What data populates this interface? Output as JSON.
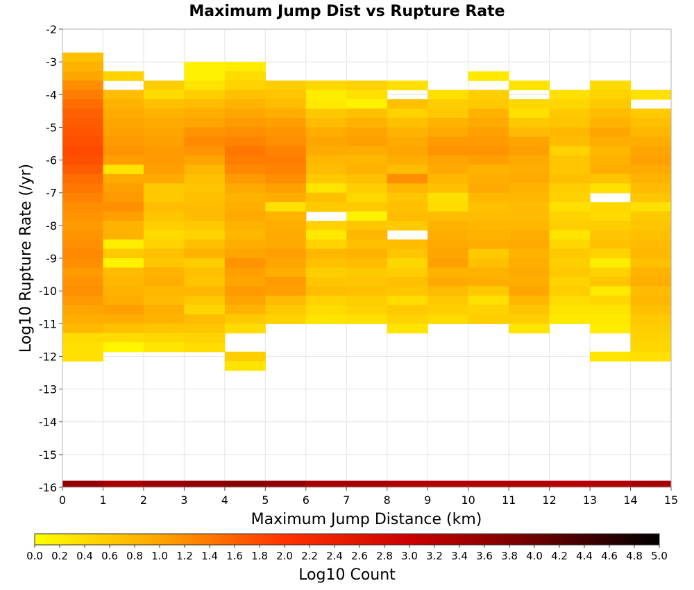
{
  "chart_data": {
    "type": "heatmap",
    "title": "Maximum Jump Dist vs Rupture Rate",
    "xlabel": "Maximum Jump Distance (km)",
    "ylabel": "Log10 Rupture Rate (/yr)",
    "xlim": [
      0,
      15
    ],
    "ylim": [
      -16,
      -2
    ],
    "x_ticks": [
      "0",
      "1",
      "2",
      "3",
      "4",
      "5",
      "6",
      "7",
      "8",
      "9",
      "10",
      "11",
      "12",
      "13",
      "14",
      "15"
    ],
    "y_ticks": [
      "-2",
      "-3",
      "-4",
      "-5",
      "-6",
      "-7",
      "-8",
      "-9",
      "-10",
      "-11",
      "-12",
      "-13",
      "-14",
      "-15",
      "-16"
    ],
    "x_bin_width": 1,
    "y_bin_height": 0.2857,
    "grid": true,
    "colorbar": {
      "label": "Log10 Count",
      "range": [
        0,
        5
      ],
      "colors": [
        "#ffff00",
        "#ffa500",
        "#ff3300",
        "#cc0000",
        "#6e0000",
        "#000000"
      ],
      "ticks": [
        "0.0",
        "0.2",
        "0.4",
        "0.6",
        "0.8",
        "1.0",
        "1.2",
        "1.4",
        "1.6",
        "1.8",
        "2.0",
        "2.2",
        "2.4",
        "2.6",
        "2.8",
        "3.0",
        "3.2",
        "3.4",
        "3.6",
        "3.8",
        "4.0",
        "4.2",
        "4.4",
        "4.6",
        "4.8",
        "5.0"
      ]
    },
    "total_row": {
      "y_range": [
        -16,
        -15.8
      ],
      "values": [
        3.6,
        3.4,
        3.5,
        3.6,
        3.7,
        3.6,
        3.4,
        3.4,
        3.3,
        3.3,
        3.3,
        3.3,
        3.2,
        3.3,
        3.4
      ]
    },
    "columns": [
      {
        "x": 0,
        "y_top": -2.714,
        "values": [
          0.7,
          0.85,
          1.0,
          1.2,
          1.35,
          1.5,
          1.6,
          1.65,
          1.7,
          1.75,
          1.8,
          1.75,
          1.65,
          1.5,
          1.4,
          1.3,
          1.2,
          1.15,
          1.1,
          1.15,
          1.2,
          1.25,
          1.2,
          1.1,
          1.15,
          1.2,
          1.1,
          1.0,
          0.9,
          0.8,
          0.4,
          0.35,
          0.35
        ]
      },
      {
        "x": 1,
        "y_top": -3.286,
        "values": [
          0.5,
          null,
          0.75,
          0.85,
          0.95,
          1.0,
          1.05,
          1.1,
          1.15,
          1.05,
          0.3,
          0.95,
          1.05,
          1.1,
          1.2,
          1.05,
          0.85,
          0.85,
          0.2,
          0.6,
          0.15,
          0.75,
          0.8,
          0.85,
          0.9,
          1.05,
          0.9,
          0.7,
          0.4,
          0.1
        ]
      },
      {
        "x": 2,
        "y_top": -3.571,
        "values": [
          0.55,
          0.4,
          0.7,
          0.85,
          0.95,
          1.0,
          1.05,
          1.1,
          1.1,
          1.05,
          0.95,
          0.6,
          0.6,
          0.75,
          0.65,
          0.55,
          0.4,
          0.5,
          0.7,
          0.65,
          0.85,
          0.9,
          0.8,
          0.75,
          0.9,
          0.85,
          0.65,
          0.45,
          0.3
        ]
      },
      {
        "x": 3,
        "y_top": -3.0,
        "values": [
          0.15,
          0.15,
          0.3,
          0.55,
          0.75,
          0.9,
          1.0,
          1.15,
          1.25,
          1.15,
          1.0,
          0.8,
          0.7,
          0.65,
          0.7,
          0.75,
          0.75,
          0.6,
          0.5,
          0.7,
          0.85,
          0.55,
          0.7,
          0.65,
          0.8,
          0.6,
          0.45,
          0.75,
          0.65,
          0.5,
          0.4
        ]
      },
      {
        "x": 4,
        "y_top": -3.0,
        "values": [
          0.2,
          0.4,
          0.5,
          0.7,
          0.85,
          1.0,
          1.1,
          1.2,
          1.3,
          1.4,
          1.35,
          1.25,
          1.1,
          0.95,
          0.85,
          0.9,
          0.95,
          0.85,
          0.8,
          0.9,
          1.0,
          1.15,
          1.05,
          1.0,
          1.1,
          1.0,
          0.85,
          0.6,
          0.4,
          null,
          null,
          0.55,
          0.3
        ]
      },
      {
        "x": 5,
        "y_top": -3.571,
        "values": [
          0.55,
          0.65,
          0.75,
          0.9,
          1.05,
          1.15,
          1.2,
          1.3,
          1.35,
          1.3,
          1.2,
          1.05,
          0.9,
          0.35,
          0.85,
          0.9,
          0.95,
          0.95,
          1.05,
          1.0,
          0.9,
          1.1,
          1.05,
          0.75,
          0.6,
          0.5
        ]
      },
      {
        "x": 6,
        "y_top": -3.571,
        "values": [
          0.45,
          0.2,
          0.25,
          0.6,
          0.75,
          0.9,
          1.0,
          0.95,
          0.8,
          0.75,
          0.6,
          0.3,
          0.7,
          0.6,
          null,
          0.5,
          0.25,
          0.5,
          0.8,
          0.7,
          0.55,
          0.65,
          0.75,
          0.5,
          0.4,
          0.3
        ]
      },
      {
        "x": 7,
        "y_top": -3.571,
        "values": [
          0.5,
          0.35,
          0.15,
          0.7,
          0.85,
          1.0,
          1.05,
          0.9,
          0.8,
          0.85,
          0.7,
          0.55,
          0.45,
          0.6,
          0.15,
          0.65,
          0.8,
          0.7,
          0.85,
          0.75,
          0.6,
          0.65,
          0.7,
          0.55,
          0.5,
          0.35
        ]
      },
      {
        "x": 8,
        "y_top": -3.571,
        "values": [
          0.35,
          null,
          0.7,
          0.5,
          0.7,
          0.85,
          0.95,
          1.0,
          0.9,
          0.75,
          1.2,
          0.8,
          0.65,
          0.7,
          0.75,
          0.6,
          null,
          0.75,
          0.65,
          0.45,
          0.55,
          0.7,
          0.65,
          0.4,
          0.6,
          0.5,
          0.3
        ]
      },
      {
        "x": 9,
        "y_top": -3.857,
        "values": [
          0.35,
          0.55,
          0.6,
          0.85,
          0.95,
          1.1,
          1.15,
          1.0,
          0.95,
          0.8,
          0.7,
          0.35,
          0.4,
          0.75,
          0.85,
          0.9,
          0.95,
          1.0,
          1.05,
          0.85,
          0.95,
          0.75,
          0.6,
          0.55,
          0.4
        ]
      },
      {
        "x": 10,
        "y_top": -3.286,
        "values": [
          0.25,
          null,
          0.55,
          0.6,
          0.85,
          0.95,
          1.05,
          1.1,
          1.15,
          1.05,
          0.85,
          0.9,
          0.95,
          0.8,
          0.7,
          0.75,
          0.8,
          0.85,
          0.9,
          0.6,
          0.7,
          0.85,
          0.9,
          0.6,
          0.35,
          0.5,
          0.55
        ]
      },
      {
        "x": 11,
        "y_top": -3.571,
        "values": [
          0.3,
          null,
          0.45,
          0.35,
          0.6,
          0.75,
          1.0,
          1.05,
          0.95,
          0.9,
          0.95,
          0.85,
          0.8,
          0.75,
          0.75,
          0.8,
          0.9,
          0.95,
          0.85,
          0.9,
          0.95,
          0.9,
          1.0,
          0.8,
          0.65,
          0.55,
          0.3
        ]
      },
      {
        "x": 12,
        "y_top": -3.857,
        "values": [
          0.35,
          0.45,
          0.6,
          0.65,
          0.8,
          0.75,
          0.5,
          0.65,
          0.65,
          0.7,
          0.55,
          0.5,
          0.35,
          0.5,
          0.55,
          0.3,
          0.45,
          0.6,
          0.55,
          0.6,
          0.5,
          0.55,
          0.4,
          0.3,
          0.25
        ]
      },
      {
        "x": 13,
        "y_top": -3.571,
        "values": [
          0.4,
          0.5,
          0.6,
          0.75,
          0.85,
          1.0,
          0.9,
          0.8,
          0.85,
          0.9,
          0.65,
          0.35,
          null,
          0.45,
          0.4,
          0.55,
          0.65,
          0.7,
          0.5,
          0.2,
          0.5,
          0.65,
          0.25,
          0.45,
          0.3,
          0.25,
          0.2,
          null,
          null,
          0.3
        ]
      },
      {
        "x": 14,
        "y_top": -3.857,
        "values": [
          0.35,
          null,
          0.6,
          0.7,
          0.8,
          0.9,
          1.0,
          1.05,
          0.95,
          0.85,
          0.75,
          0.65,
          0.35,
          0.6,
          0.65,
          0.7,
          0.75,
          0.8,
          0.7,
          0.85,
          0.9,
          0.75,
          0.8,
          0.7,
          0.6,
          0.55,
          0.5,
          0.45,
          0.35
        ]
      }
    ]
  }
}
